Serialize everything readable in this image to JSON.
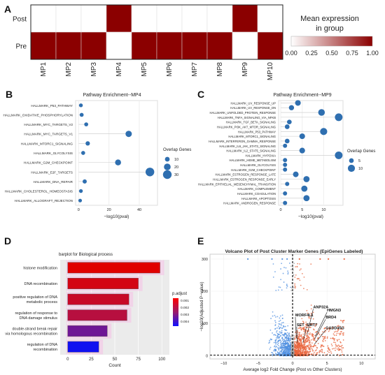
{
  "panels": {
    "A": {
      "letter": "A"
    },
    "B": {
      "letter": "B"
    },
    "C": {
      "letter": "C"
    },
    "D": {
      "letter": "D"
    },
    "E": {
      "letter": "E"
    }
  },
  "chart_data": [
    {
      "type": "heatmap",
      "panel": "A",
      "rows": [
        "Post",
        "Pre"
      ],
      "columns": [
        "MP1",
        "MP2",
        "MP3",
        "MP4",
        "MP5",
        "MP6",
        "MP7",
        "MP8",
        "MP9",
        "MP10"
      ],
      "values": [
        [
          0,
          0,
          0,
          1,
          0,
          0,
          0,
          0,
          1,
          0
        ],
        [
          1,
          1,
          1,
          0,
          1,
          1,
          1,
          1,
          0,
          1
        ]
      ],
      "legend_title": [
        "Mean expression",
        "in group"
      ],
      "legend_ticks": [
        "0.00",
        "0.25",
        "0.50",
        "0.75",
        "1.00"
      ],
      "colors": {
        "low": "#ffffff",
        "high": "#8b0000"
      }
    },
    {
      "type": "scatter",
      "panel": "B",
      "title": "Pathway Enrichment--MP4",
      "xlabel": "−log10(pval)",
      "xticks": [
        "0",
        "20",
        "40"
      ],
      "xlim": [
        -2,
        52
      ],
      "pathways": [
        {
          "name": "HALLMARK_P53_PATHWAY",
          "value": 1.5,
          "size": 5
        },
        {
          "name": "HALLMARK_OXIDATIVE_PHOSPHORYLATION",
          "value": 2,
          "size": 6
        },
        {
          "name": "HALLMARK_MYC_TARGETS_V2",
          "value": 5,
          "size": 6
        },
        {
          "name": "HALLMARK_MYC_TARGETS_V1",
          "value": 33,
          "size": 18
        },
        {
          "name": "HALLMARK_MTORC1_SIGNALING",
          "value": 6,
          "size": 8
        },
        {
          "name": "HALLMARK_GLYCOLYSIS",
          "value": 3,
          "size": 6
        },
        {
          "name": "HALLMARK_G2M_CHECKPOINT",
          "value": 26,
          "size": 16
        },
        {
          "name": "HALLMARK_E2F_TARGETS",
          "value": 47,
          "size": 30
        },
        {
          "name": "HALLMARK_DNA_REPAIR",
          "value": 4,
          "size": 7
        },
        {
          "name": "HALLMARK_CHOLESTEROL_HOMEOSTASIS",
          "value": 1.5,
          "size": 5
        },
        {
          "name": "HALLMARK_ALLOGRAFT_REJECTION",
          "value": 1,
          "size": 4
        }
      ],
      "legend_title": "Overlap Genes",
      "legend_sizes": [
        "10",
        "20",
        "30"
      ]
    },
    {
      "type": "scatter",
      "panel": "C",
      "title": "Pathway Enrichment--MP9",
      "xlabel": "−log10(pval)",
      "xticks": [
        "0",
        "5",
        "10"
      ],
      "xlim": [
        -0.5,
        14.5
      ],
      "pathways": [
        {
          "name": "HALLMARK_UV_RESPONSE_UP",
          "value": 4,
          "size": 7
        },
        {
          "name": "HALLMARK_UV_RESPONSE_DN",
          "value": 2.5,
          "size": 6
        },
        {
          "name": "HALLMARK_UNFOLDED_PROTEIN_RESPONSE",
          "value": 9.5,
          "size": 9
        },
        {
          "name": "HALLMARK_TNFA_SIGNALING_VIA_NFKB",
          "value": 13.5,
          "size": 11
        },
        {
          "name": "HALLMARK_TGF_BETA_SIGNALING",
          "value": 2,
          "size": 5
        },
        {
          "name": "HALLMARK_PI3K_AKT_MTOR_SIGNALING",
          "value": 1.5,
          "size": 5
        },
        {
          "name": "HALLMARK_P53_PATHWAY",
          "value": 10,
          "size": 10
        },
        {
          "name": "HALLMARK_MTORC1_SIGNALING",
          "value": 5,
          "size": 7
        },
        {
          "name": "HALLMARK_INTERFERON_GAMMA_RESPONSE",
          "value": 1.5,
          "size": 5
        },
        {
          "name": "HALLMARK_IL6_JAK_STAT3_SIGNALING",
          "value": 1,
          "size": 4
        },
        {
          "name": "HALLMARK_IL2_STAT5_SIGNALING",
          "value": 5,
          "size": 7
        },
        {
          "name": "HALLMARK_HYPOXIA",
          "value": 13.5,
          "size": 11
        },
        {
          "name": "HALLMARK_HEME_METABOLISM",
          "value": 1,
          "size": 4
        },
        {
          "name": "HALLMARK_GLYCOLYSIS",
          "value": 1,
          "size": 4
        },
        {
          "name": "HALLMARK_G2M_CHECKPOINT",
          "value": 1,
          "size": 4
        },
        {
          "name": "HALLMARK_ESTROGEN_RESPONSE_LATE",
          "value": 3.5,
          "size": 7
        },
        {
          "name": "HALLMARK_ESTROGEN_RESPONSE_EARLY",
          "value": 6,
          "size": 8
        },
        {
          "name": "HALLMARK_EPITHELIAL_MESENCHYMAL_TRANSITION",
          "value": 1.5,
          "size": 4
        },
        {
          "name": "HALLMARK_COMPLEMENT",
          "value": 5.5,
          "size": 8
        },
        {
          "name": "HALLMARK_COAGULATION",
          "value": 1,
          "size": 4
        },
        {
          "name": "HALLMARK_APOPTOSIS",
          "value": 6,
          "size": 8
        },
        {
          "name": "HALLMARK_ANDROGEN_RESPONSE",
          "value": 1,
          "size": 4
        }
      ],
      "legend_title": "Overlap Genes",
      "legend_sizes": [
        "5",
        "10"
      ]
    },
    {
      "type": "bar",
      "panel": "D",
      "title": "barplot for Biological process",
      "xlabel": "Count",
      "xticks": [
        "0",
        "25",
        "50",
        "75",
        "100"
      ],
      "xlim": [
        -8,
        108
      ],
      "categories": [
        "histone modification",
        "DNA recombination",
        "positive regulation of DNA metabolic process",
        "regulation of response to DNA damage stimulus",
        "double-strand break repair via homologous recombination",
        "regulation of DNA recombination"
      ],
      "category_lines": [
        [
          "histone modification"
        ],
        [
          "DNA recombination"
        ],
        [
          "positive regulation of DNA",
          "metabolic process"
        ],
        [
          "regulation of response to",
          "DNA damage stimulus"
        ],
        [
          "double-strand break repair",
          "via homologous recombination"
        ],
        [
          "regulation of DNA",
          "recombination"
        ]
      ],
      "values": [
        98,
        75,
        65,
        63,
        42,
        33
      ],
      "p_adjust": [
        0.0001,
        0.0005,
        0.0009,
        0.0014,
        0.003,
        0.0045
      ],
      "legend_title": "p.adjust",
      "legend_ticks": [
        "0.001",
        "0.002",
        "0.003",
        "0.004"
      ]
    },
    {
      "type": "scatter",
      "panel": "E",
      "title": "Volcano Plot of Post Cluster Marker Genes (EpiGenes Labeled)",
      "xlabel": "Average log2 Fold Change (Post vs Other Clusters)",
      "ylabel": "−log10(Adjusted P−value)",
      "xticks": [
        "−10",
        "−5",
        "0",
        "5",
        "10"
      ],
      "yticks": [
        "0",
        "100",
        "200",
        "300"
      ],
      "xlim": [
        -12,
        12
      ],
      "ylim": [
        -10,
        315
      ],
      "labeled_genes": [
        {
          "name": "ANP32A",
          "x": 3.0,
          "y": 145
        },
        {
          "name": "HMGN3",
          "x": 5.0,
          "y": 135
        },
        {
          "name": "MORF4L1",
          "x": 0.4,
          "y": 120
        },
        {
          "name": "BRD4",
          "x": 4.8,
          "y": 113
        },
        {
          "name": "SET",
          "x": 0.6,
          "y": 90
        },
        {
          "name": "SIRT7",
          "x": 2.0,
          "y": 90
        },
        {
          "name": "GADD45G",
          "x": 4.8,
          "y": 80
        }
      ],
      "colors": {
        "up": "#e8643c",
        "down": "#4f8fe0",
        "ns": "#a0a0a0"
      }
    }
  ]
}
